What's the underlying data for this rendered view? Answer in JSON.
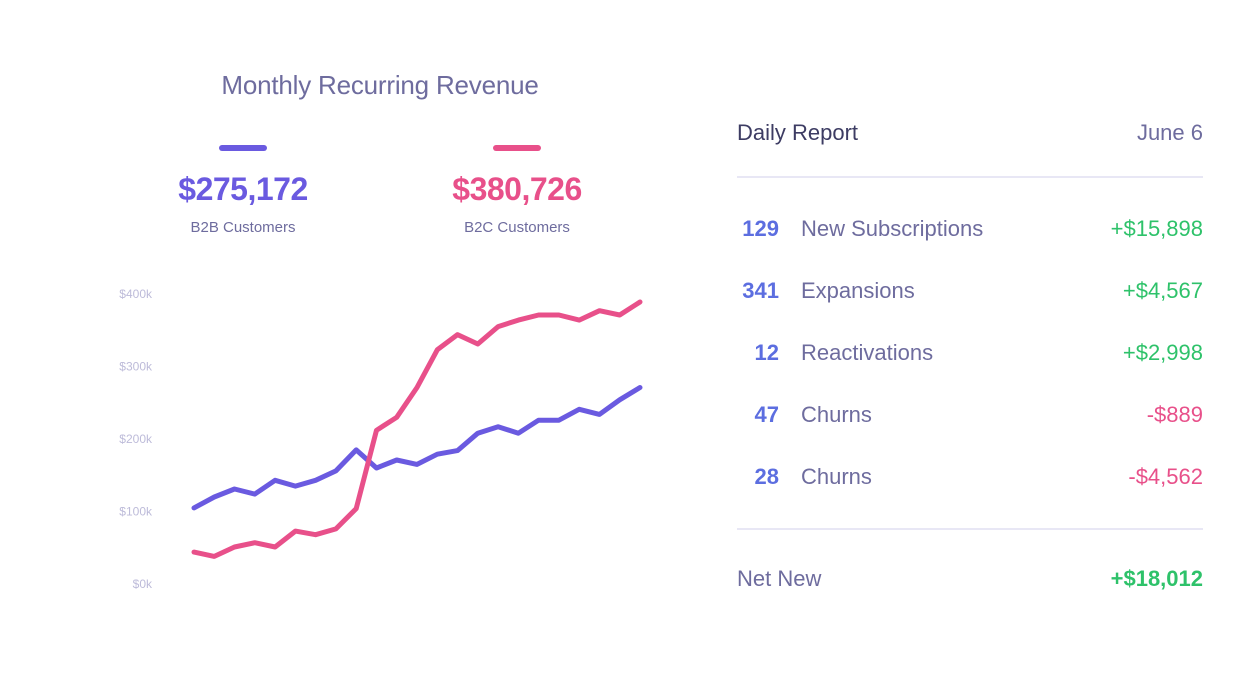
{
  "colors": {
    "b2b": "#6a5ae0",
    "b2c": "#e8508a",
    "positive": "#2ec26a",
    "negative": "#e8508a",
    "muted": "#6e6c9e"
  },
  "chart": {
    "title": "Monthly Recurring Revenue",
    "b2b": {
      "value": "$275,172",
      "label": "B2B Customers"
    },
    "b2c": {
      "value": "$380,726",
      "label": "B2C Customers"
    }
  },
  "report": {
    "title": "Daily Report",
    "date": "June 6",
    "rows": [
      {
        "count": "129",
        "name": "New Subscriptions",
        "amount": "+$15,898",
        "type": "positive"
      },
      {
        "count": "341",
        "name": "Expansions",
        "amount": "+$4,567",
        "type": "positive"
      },
      {
        "count": "12",
        "name": "Reactivations",
        "amount": "+$2,998",
        "type": "positive"
      },
      {
        "count": "47",
        "name": "Churns",
        "amount": "-$889",
        "type": "negative"
      },
      {
        "count": "28",
        "name": "Churns",
        "amount": "-$4,562",
        "type": "negative"
      }
    ],
    "net_label": "Net New",
    "net_amount": "+$18,012"
  },
  "chart_data": {
    "type": "line",
    "title": "Monthly Recurring Revenue",
    "ylim": [
      0,
      400000
    ],
    "yticks": [
      0,
      100000,
      200000,
      300000,
      400000
    ],
    "ytick_labels": [
      "$0k",
      "$100k",
      "$200k",
      "$300k",
      "$400k"
    ],
    "grid": false,
    "legend": "top",
    "series": [
      {
        "name": "B2B Customers",
        "color": "#6a5ae0",
        "values": [
          105000,
          120000,
          131000,
          124000,
          143000,
          135000,
          143000,
          156000,
          185000,
          160000,
          171000,
          165000,
          179000,
          184000,
          208000,
          217000,
          208000,
          226000,
          226000,
          241000,
          234000,
          254000,
          271000
        ]
      },
      {
        "name": "B2C Customers",
        "color": "#e8508a",
        "values": [
          44000,
          38000,
          51000,
          57000,
          51000,
          73000,
          68000,
          76000,
          104000,
          212000,
          230000,
          271000,
          323000,
          344000,
          331000,
          355000,
          364000,
          371000,
          371000,
          364000,
          377000,
          371000,
          389000
        ]
      }
    ]
  }
}
